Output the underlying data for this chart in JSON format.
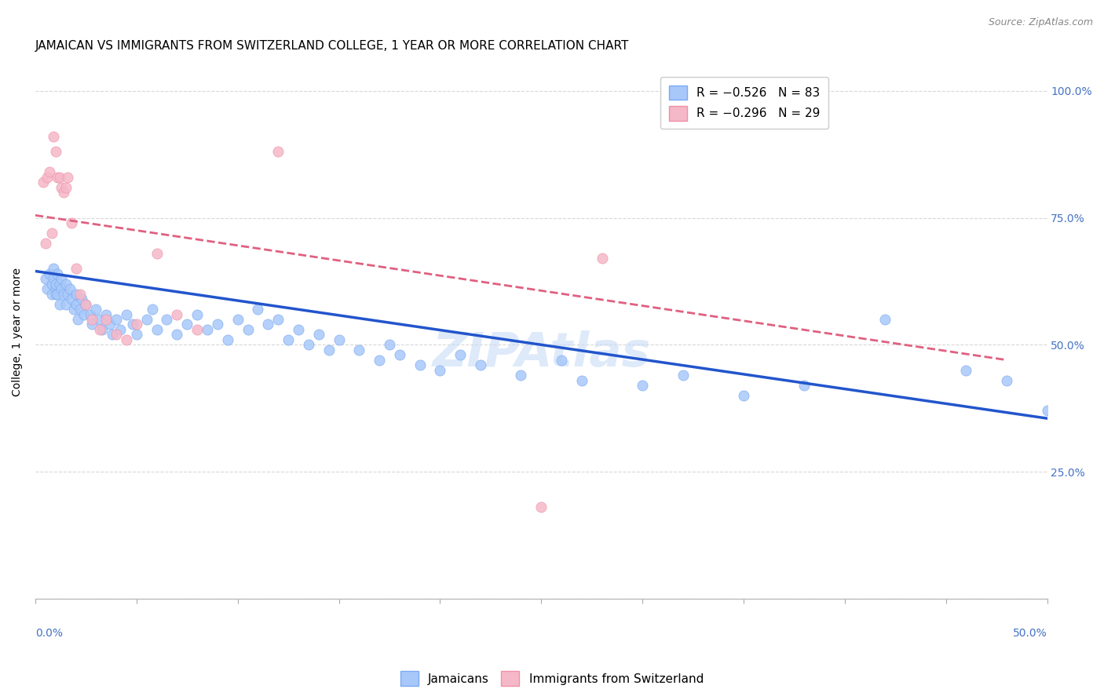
{
  "title": "JAMAICAN VS IMMIGRANTS FROM SWITZERLAND COLLEGE, 1 YEAR OR MORE CORRELATION CHART",
  "source": "Source: ZipAtlas.com",
  "ylabel": "College, 1 year or more",
  "legend_blue": "R = -0.526   N = 83",
  "legend_pink": "R = -0.296   N = 29",
  "legend_label_blue": "Jamaicans",
  "legend_label_pink": "Immigrants from Switzerland",
  "blue_color": "#a8c8fa",
  "pink_color": "#f5b8c8",
  "blue_edge": "#7aaaf0",
  "pink_edge": "#f090a8",
  "line_blue_color": "#2255cc",
  "line_pink_color": "#e06080",
  "watermark": "ZIPAtlas",
  "xlim": [
    0.0,
    0.5
  ],
  "ylim": [
    0.0,
    1.05
  ],
  "blue_scatter_x": [
    0.005,
    0.006,
    0.007,
    0.008,
    0.008,
    0.009,
    0.009,
    0.01,
    0.01,
    0.01,
    0.011,
    0.011,
    0.012,
    0.012,
    0.013,
    0.013,
    0.014,
    0.015,
    0.015,
    0.016,
    0.017,
    0.018,
    0.019,
    0.02,
    0.02,
    0.021,
    0.022,
    0.023,
    0.024,
    0.025,
    0.027,
    0.028,
    0.03,
    0.032,
    0.033,
    0.035,
    0.037,
    0.038,
    0.04,
    0.042,
    0.045,
    0.048,
    0.05,
    0.055,
    0.058,
    0.06,
    0.065,
    0.07,
    0.075,
    0.08,
    0.085,
    0.09,
    0.095,
    0.1,
    0.105,
    0.11,
    0.115,
    0.12,
    0.125,
    0.13,
    0.135,
    0.14,
    0.145,
    0.15,
    0.16,
    0.17,
    0.175,
    0.18,
    0.19,
    0.2,
    0.21,
    0.22,
    0.24,
    0.26,
    0.27,
    0.3,
    0.32,
    0.35,
    0.38,
    0.42,
    0.46,
    0.48,
    0.5
  ],
  "blue_scatter_y": [
    0.63,
    0.61,
    0.64,
    0.62,
    0.6,
    0.65,
    0.63,
    0.61,
    0.6,
    0.62,
    0.64,
    0.6,
    0.62,
    0.58,
    0.61,
    0.63,
    0.6,
    0.62,
    0.58,
    0.6,
    0.61,
    0.59,
    0.57,
    0.6,
    0.58,
    0.55,
    0.57,
    0.59,
    0.56,
    0.58,
    0.56,
    0.54,
    0.57,
    0.55,
    0.53,
    0.56,
    0.54,
    0.52,
    0.55,
    0.53,
    0.56,
    0.54,
    0.52,
    0.55,
    0.57,
    0.53,
    0.55,
    0.52,
    0.54,
    0.56,
    0.53,
    0.54,
    0.51,
    0.55,
    0.53,
    0.57,
    0.54,
    0.55,
    0.51,
    0.53,
    0.5,
    0.52,
    0.49,
    0.51,
    0.49,
    0.47,
    0.5,
    0.48,
    0.46,
    0.45,
    0.48,
    0.46,
    0.44,
    0.47,
    0.43,
    0.42,
    0.44,
    0.4,
    0.42,
    0.55,
    0.45,
    0.43,
    0.37
  ],
  "pink_scatter_x": [
    0.004,
    0.005,
    0.006,
    0.007,
    0.008,
    0.009,
    0.01,
    0.011,
    0.012,
    0.013,
    0.014,
    0.015,
    0.016,
    0.018,
    0.02,
    0.022,
    0.025,
    0.028,
    0.032,
    0.035,
    0.04,
    0.045,
    0.05,
    0.06,
    0.07,
    0.08,
    0.12,
    0.25,
    0.28
  ],
  "pink_scatter_y": [
    0.82,
    0.7,
    0.83,
    0.84,
    0.72,
    0.91,
    0.88,
    0.83,
    0.83,
    0.81,
    0.8,
    0.81,
    0.83,
    0.74,
    0.65,
    0.6,
    0.58,
    0.55,
    0.53,
    0.55,
    0.52,
    0.51,
    0.54,
    0.68,
    0.56,
    0.53,
    0.88,
    0.18,
    0.67
  ],
  "blue_line_x": [
    0.0,
    0.5
  ],
  "blue_line_y": [
    0.645,
    0.355
  ],
  "pink_line_x": [
    0.0,
    0.48
  ],
  "pink_line_y": [
    0.755,
    0.47
  ],
  "grid_color": "#d8d8d8",
  "title_fontsize": 11,
  "tick_fontsize": 10,
  "ylabel_fontsize": 10,
  "source_fontsize": 9,
  "right_tick_color": "#4472c4"
}
